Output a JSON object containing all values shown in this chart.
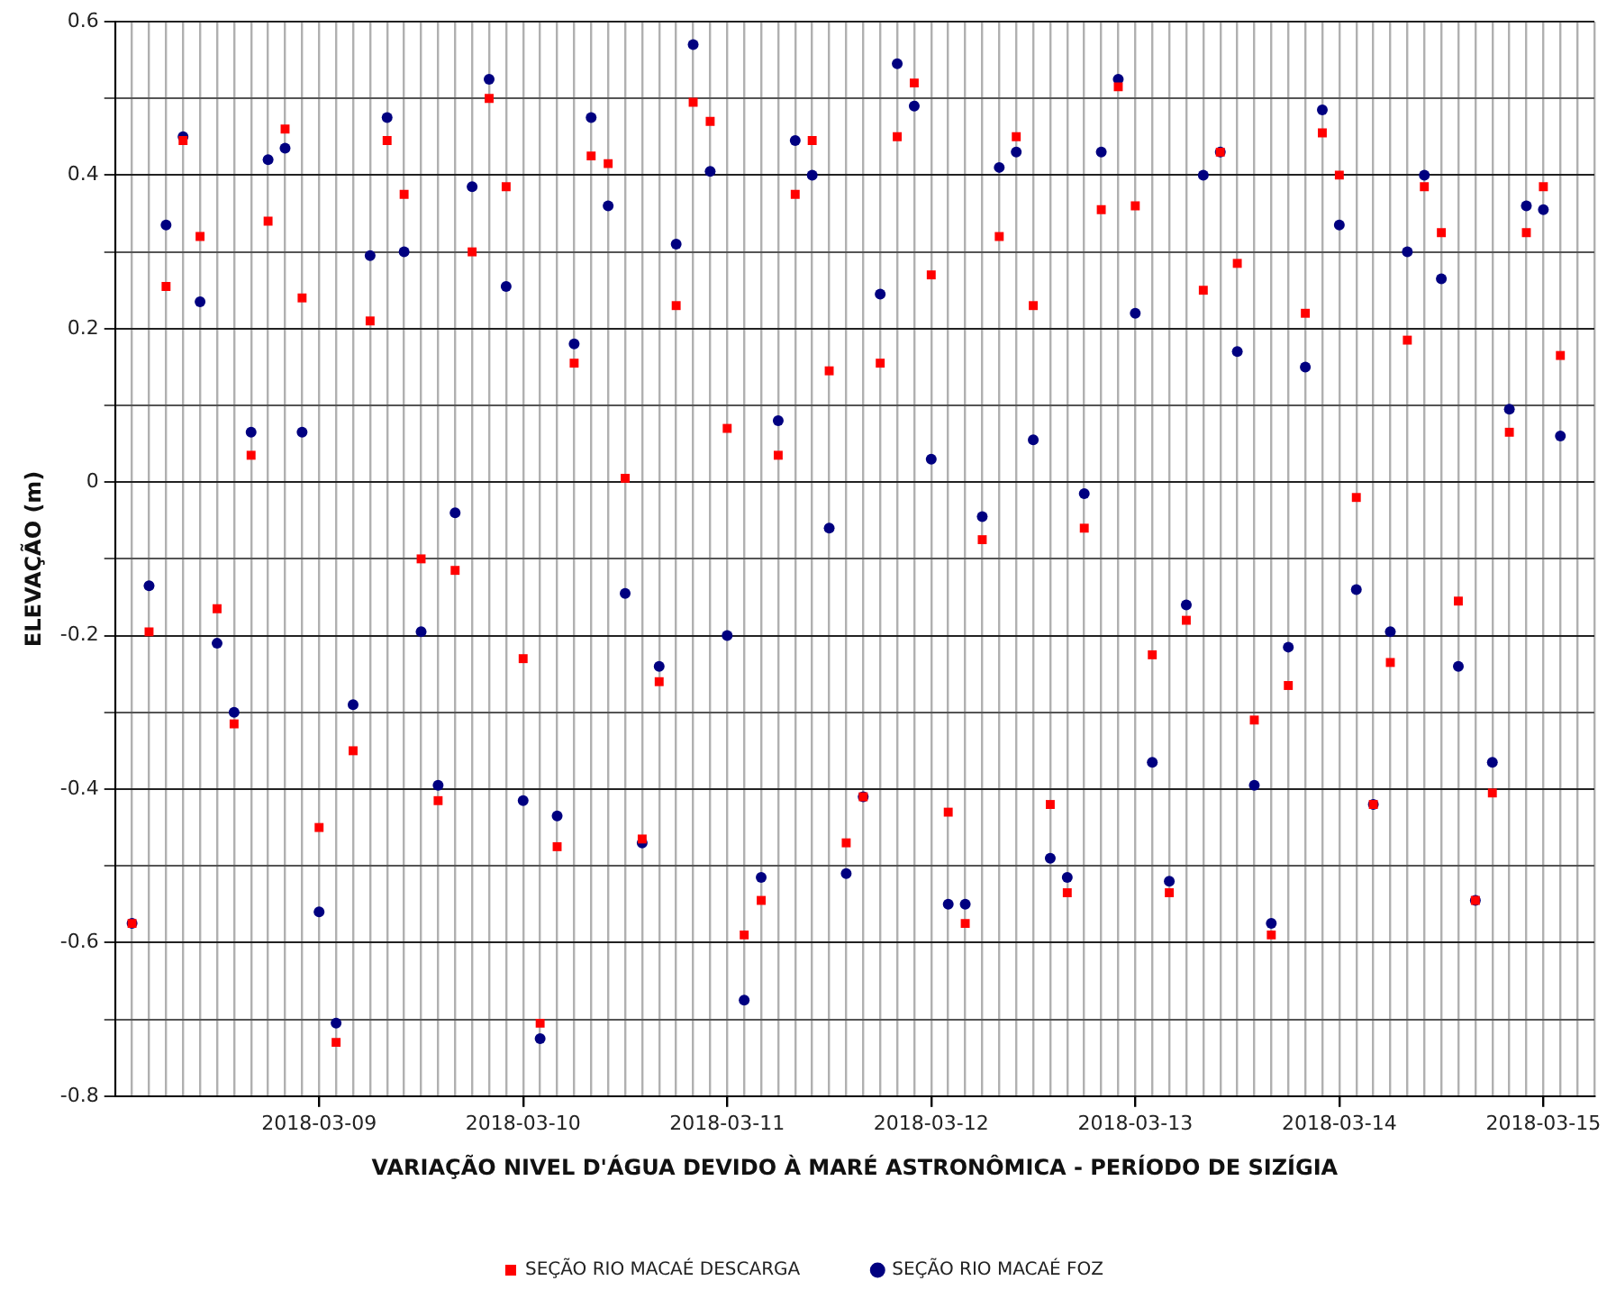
{
  "chart_data": {
    "type": "scatter",
    "xlabel": "VARIAÇÃO NIVEL D'ÁGUA DEVIDO À MARÉ ASTRONÔMICA - PERÍODO DE SIZÍGIA",
    "ylabel": "ELEVAÇÃO (m)",
    "x": [
      "2018-03-08T02:00",
      "2018-03-08T04:00",
      "2018-03-08T06:00",
      "2018-03-08T08:00",
      "2018-03-08T10:00",
      "2018-03-08T12:00",
      "2018-03-08T14:00",
      "2018-03-08T16:00",
      "2018-03-08T18:00",
      "2018-03-08T20:00",
      "2018-03-08T22:00",
      "2018-03-09T00:00",
      "2018-03-09T02:00",
      "2018-03-09T04:00",
      "2018-03-09T06:00",
      "2018-03-09T08:00",
      "2018-03-09T10:00",
      "2018-03-09T12:00",
      "2018-03-09T14:00",
      "2018-03-09T16:00",
      "2018-03-09T18:00",
      "2018-03-09T20:00",
      "2018-03-09T22:00",
      "2018-03-10T00:00",
      "2018-03-10T02:00",
      "2018-03-10T04:00",
      "2018-03-10T06:00",
      "2018-03-10T08:00",
      "2018-03-10T10:00",
      "2018-03-10T12:00",
      "2018-03-10T14:00",
      "2018-03-10T16:00",
      "2018-03-10T18:00",
      "2018-03-10T20:00",
      "2018-03-10T22:00",
      "2018-03-11T00:00",
      "2018-03-11T02:00",
      "2018-03-11T04:00",
      "2018-03-11T06:00",
      "2018-03-11T08:00",
      "2018-03-11T10:00",
      "2018-03-11T12:00",
      "2018-03-11T14:00",
      "2018-03-11T16:00",
      "2018-03-11T18:00",
      "2018-03-11T20:00",
      "2018-03-11T22:00",
      "2018-03-12T00:00",
      "2018-03-12T02:00",
      "2018-03-12T04:00",
      "2018-03-12T06:00",
      "2018-03-12T08:00",
      "2018-03-12T10:00",
      "2018-03-12T12:00",
      "2018-03-12T14:00",
      "2018-03-12T16:00",
      "2018-03-12T18:00",
      "2018-03-12T20:00",
      "2018-03-12T22:00",
      "2018-03-13T00:00",
      "2018-03-13T02:00",
      "2018-03-13T04:00",
      "2018-03-13T06:00",
      "2018-03-13T08:00",
      "2018-03-13T10:00",
      "2018-03-13T12:00",
      "2018-03-13T14:00",
      "2018-03-13T16:00",
      "2018-03-13T18:00",
      "2018-03-13T20:00",
      "2018-03-13T22:00",
      "2018-03-14T00:00",
      "2018-03-14T02:00",
      "2018-03-14T04:00",
      "2018-03-14T06:00",
      "2018-03-14T08:00",
      "2018-03-14T10:00",
      "2018-03-14T12:00",
      "2018-03-14T14:00",
      "2018-03-14T16:00",
      "2018-03-14T18:00",
      "2018-03-14T20:00",
      "2018-03-14T22:00",
      "2018-03-15T00:00",
      "2018-03-15T02:00"
    ],
    "series": [
      {
        "name": "SEÇÃO RIO MACAÉ DESCARGA",
        "color": "#ff0000",
        "marker": "square",
        "values": [
          -0.575,
          -0.195,
          0.255,
          0.445,
          0.32,
          -0.165,
          -0.315,
          0.035,
          0.34,
          0.46,
          0.24,
          -0.45,
          -0.73,
          -0.35,
          0.21,
          0.445,
          0.375,
          -0.1,
          -0.415,
          -0.115,
          0.3,
          0.5,
          0.385,
          -0.23,
          -0.705,
          -0.475,
          0.155,
          0.425,
          0.415,
          0.005,
          -0.465,
          -0.26,
          0.23,
          0.495,
          0.47,
          0.07,
          -0.59,
          -0.545,
          0.035,
          0.375,
          0.445,
          0.145,
          -0.47,
          -0.41,
          0.155,
          0.45,
          0.52,
          0.27,
          -0.43,
          -0.575,
          -0.075,
          0.32,
          0.45,
          0.23,
          -0.42,
          -0.535,
          -0.06,
          0.355,
          0.515,
          0.36,
          -0.225,
          -0.535,
          -0.18,
          0.25,
          0.43,
          0.285,
          -0.31,
          -0.59,
          -0.265,
          0.22,
          0.455,
          0.4,
          -0.02,
          -0.42,
          -0.235,
          0.185,
          0.385,
          0.325,
          -0.155,
          -0.545,
          -0.405,
          0.065,
          0.325,
          0.385,
          0.165
        ]
      },
      {
        "name": "SEÇÃO RIO MACAÉ FOZ",
        "color": "#000080",
        "marker": "circle",
        "values": [
          -0.575,
          -0.135,
          0.335,
          0.45,
          0.235,
          -0.21,
          -0.3,
          0.065,
          0.42,
          0.435,
          0.065,
          -0.56,
          -0.705,
          -0.29,
          0.295,
          0.475,
          0.3,
          -0.195,
          -0.395,
          -0.04,
          0.385,
          0.525,
          0.255,
          -0.415,
          -0.725,
          -0.435,
          0.18,
          0.475,
          0.36,
          -0.145,
          -0.47,
          -0.24,
          0.31,
          0.57,
          0.405,
          -0.2,
          -0.675,
          -0.515,
          0.08,
          0.445,
          0.4,
          -0.06,
          -0.51,
          -0.41,
          0.245,
          0.545,
          0.49,
          0.03,
          -0.55,
          -0.55,
          -0.045,
          0.41,
          0.43,
          0.055,
          -0.49,
          -0.515,
          -0.015,
          0.43,
          0.525,
          0.22,
          -0.365,
          -0.52,
          -0.16,
          0.4,
          0.43,
          0.17,
          -0.395,
          -0.575,
          -0.215,
          0.15,
          0.485,
          0.335,
          -0.14,
          -0.42,
          -0.195,
          0.3,
          0.4,
          0.265,
          -0.24,
          -0.545,
          -0.365,
          0.095,
          0.36,
          0.355,
          0.06
        ]
      }
    ],
    "xlim": [
      "2018-03-08T00:00",
      "2018-03-15T06:00"
    ],
    "xticks": [
      {
        "value": "2018-03-08T00:00",
        "label": null
      },
      {
        "value": "2018-03-08T02:00",
        "label": null
      },
      {
        "value": "2018-03-08T04:00",
        "label": null
      },
      {
        "value": "2018-03-08T06:00",
        "label": null
      },
      {
        "value": "2018-03-08T08:00",
        "label": null
      },
      {
        "value": "2018-03-08T10:00",
        "label": null
      },
      {
        "value": "2018-03-08T12:00",
        "label": null
      },
      {
        "value": "2018-03-08T14:00",
        "label": null
      },
      {
        "value": "2018-03-08T16:00",
        "label": null
      },
      {
        "value": "2018-03-08T18:00",
        "label": null
      },
      {
        "value": "2018-03-08T20:00",
        "label": null
      },
      {
        "value": "2018-03-08T22:00",
        "label": null
      },
      "2018-03-09",
      {
        "value": "2018-03-09T02:00",
        "label": null
      },
      {
        "value": "2018-03-09T04:00",
        "label": null
      },
      {
        "value": "2018-03-09T06:00",
        "label": null
      },
      {
        "value": "2018-03-09T08:00",
        "label": null
      },
      {
        "value": "2018-03-09T10:00",
        "label": null
      },
      {
        "value": "2018-03-09T12:00",
        "label": null
      },
      {
        "value": "2018-03-09T14:00",
        "label": null
      },
      {
        "value": "2018-03-09T16:00",
        "label": null
      },
      {
        "value": "2018-03-09T18:00",
        "label": null
      },
      {
        "value": "2018-03-09T20:00",
        "label": null
      },
      {
        "value": "2018-03-09T22:00",
        "label": null
      },
      "2018-03-10",
      {
        "value": "2018-03-10T02:00",
        "label": null
      },
      {
        "value": "2018-03-10T04:00",
        "label": null
      },
      {
        "value": "2018-03-10T06:00",
        "label": null
      },
      {
        "value": "2018-03-10T08:00",
        "label": null
      },
      {
        "value": "2018-03-10T10:00",
        "label": null
      },
      {
        "value": "2018-03-10T12:00",
        "label": null
      },
      {
        "value": "2018-03-10T14:00",
        "label": null
      },
      {
        "value": "2018-03-10T16:00",
        "label": null
      },
      {
        "value": "2018-03-10T18:00",
        "label": null
      },
      {
        "value": "2018-03-10T20:00",
        "label": null
      },
      {
        "value": "2018-03-10T22:00",
        "label": null
      },
      "2018-03-11",
      {
        "value": "2018-03-11T02:00",
        "label": null
      },
      {
        "value": "2018-03-11T04:00",
        "label": null
      },
      {
        "value": "2018-03-11T06:00",
        "label": null
      },
      {
        "value": "2018-03-11T08:00",
        "label": null
      },
      {
        "value": "2018-03-11T10:00",
        "label": null
      },
      {
        "value": "2018-03-11T12:00",
        "label": null
      },
      {
        "value": "2018-03-11T14:00",
        "label": null
      },
      {
        "value": "2018-03-11T16:00",
        "label": null
      },
      {
        "value": "2018-03-11T18:00",
        "label": null
      },
      {
        "value": "2018-03-11T20:00",
        "label": null
      },
      {
        "value": "2018-03-11T22:00",
        "label": null
      },
      "2018-03-12",
      {
        "value": "2018-03-12T02:00",
        "label": null
      },
      {
        "value": "2018-03-12T04:00",
        "label": null
      },
      {
        "value": "2018-03-12T06:00",
        "label": null
      },
      {
        "value": "2018-03-12T08:00",
        "label": null
      },
      {
        "value": "2018-03-12T10:00",
        "label": null
      },
      {
        "value": "2018-03-12T12:00",
        "label": null
      },
      {
        "value": "2018-03-12T14:00",
        "label": null
      },
      {
        "value": "2018-03-12T16:00",
        "label": null
      },
      {
        "value": "2018-03-12T18:00",
        "label": null
      },
      {
        "value": "2018-03-12T20:00",
        "label": null
      },
      {
        "value": "2018-03-12T22:00",
        "label": null
      },
      "2018-03-13",
      {
        "value": "2018-03-13T02:00",
        "label": null
      },
      {
        "value": "2018-03-13T04:00",
        "label": null
      },
      {
        "value": "2018-03-13T06:00",
        "label": null
      },
      {
        "value": "2018-03-13T08:00",
        "label": null
      },
      {
        "value": "2018-03-13T10:00",
        "label": null
      },
      {
        "value": "2018-03-13T12:00",
        "label": null
      },
      {
        "value": "2018-03-13T14:00",
        "label": null
      },
      {
        "value": "2018-03-13T16:00",
        "label": null
      },
      {
        "value": "2018-03-13T18:00",
        "label": null
      },
      {
        "value": "2018-03-13T20:00",
        "label": null
      },
      {
        "value": "2018-03-13T22:00",
        "label": null
      },
      "2018-03-14",
      {
        "value": "2018-03-14T02:00",
        "label": null
      },
      {
        "value": "2018-03-14T04:00",
        "label": null
      },
      {
        "value": "2018-03-14T06:00",
        "label": null
      },
      {
        "value": "2018-03-14T08:00",
        "label": null
      },
      {
        "value": "2018-03-14T10:00",
        "label": null
      },
      {
        "value": "2018-03-14T12:00",
        "label": null
      },
      {
        "value": "2018-03-14T14:00",
        "label": null
      },
      {
        "value": "2018-03-14T16:00",
        "label": null
      },
      {
        "value": "2018-03-14T18:00",
        "label": null
      },
      {
        "value": "2018-03-14T20:00",
        "label": null
      },
      {
        "value": "2018-03-14T22:00",
        "label": null
      },
      "2018-03-15",
      {
        "value": "2018-03-15T02:00",
        "label": null
      },
      {
        "value": "2018-03-15T04:00",
        "label": null
      },
      {
        "value": "2018-03-15T06:00",
        "label": null
      }
    ],
    "ylim": [
      -0.8,
      0.6
    ],
    "yticks": [
      -0.8,
      {
        "value": -0.7,
        "label": null
      },
      -0.6,
      {
        "value": -0.5,
        "label": null
      },
      -0.4,
      {
        "value": -0.3,
        "label": null
      },
      -0.2,
      {
        "value": -0.1,
        "label": null
      },
      0,
      {
        "value": 0.1,
        "label": null
      },
      0.2,
      {
        "value": 0.3,
        "label": null
      },
      0.4,
      {
        "value": 0.5,
        "label": null
      },
      0.6
    ],
    "grid": true,
    "legend": "bottom"
  }
}
